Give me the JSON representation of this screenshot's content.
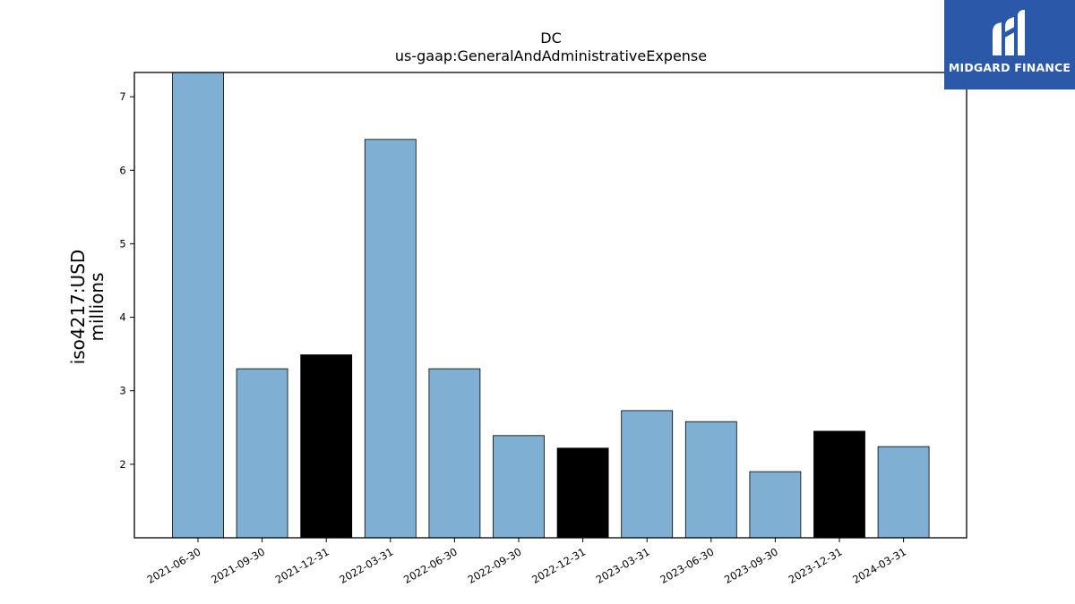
{
  "brand": {
    "name": "MIDGARD FINANCE",
    "bg_color": "#2b58a9",
    "icon": "midgard-m-logo-icon"
  },
  "chart_data": {
    "type": "bar",
    "title": "DC",
    "subtitle": "us-gaap:GeneralAndAdministrativeExpense",
    "ylabel": "iso4217:USD",
    "ylabel2": "millions",
    "xlabel": "",
    "ylim": [
      1.0,
      7.33
    ],
    "yticks": [
      2,
      3,
      4,
      5,
      6,
      7
    ],
    "categories": [
      "2021-06-30",
      "2021-09-30",
      "2021-12-31",
      "2022-03-31",
      "2022-06-30",
      "2022-09-30",
      "2022-12-31",
      "2023-03-31",
      "2023-06-30",
      "2023-09-30",
      "2023-12-31",
      "2024-03-31"
    ],
    "values": [
      7.33,
      3.3,
      3.49,
      6.42,
      3.3,
      2.39,
      2.22,
      2.73,
      2.58,
      1.9,
      2.45,
      2.24
    ],
    "colors": [
      "#7fafd3",
      "#7fafd3",
      "#000000",
      "#7fafd3",
      "#7fafd3",
      "#7fafd3",
      "#000000",
      "#7fafd3",
      "#7fafd3",
      "#7fafd3",
      "#000000",
      "#7fafd3"
    ],
    "grid": false,
    "legend": "none"
  }
}
